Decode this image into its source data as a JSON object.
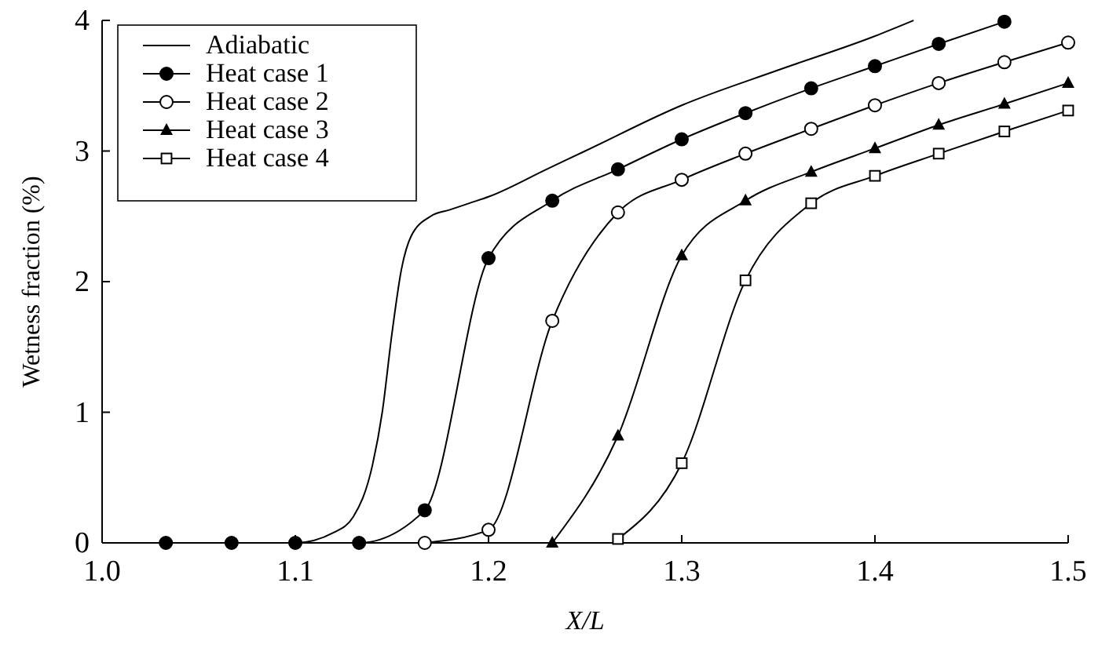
{
  "chart_data": {
    "type": "line",
    "xlabel": "X/L",
    "ylabel": "Wetness fraction (%)",
    "xlim": [
      1.0,
      1.5
    ],
    "ylim": [
      0,
      4
    ],
    "xticks": [
      {
        "value": 1.0,
        "label": "1.0"
      },
      1.1,
      1.2,
      1.3,
      1.4,
      1.5
    ],
    "yticks": [
      0,
      1,
      2,
      3,
      4
    ],
    "grid": false,
    "legend": "top left",
    "series": [
      {
        "name": "Adiabatic",
        "color": "#000000",
        "marker": "none",
        "x": [
          1.03,
          1.1,
          1.12,
          1.13,
          1.14,
          1.145,
          1.15,
          1.155,
          1.16,
          1.17,
          1.18,
          1.19,
          1.2,
          1.23,
          1.25,
          1.3,
          1.35,
          1.4,
          1.42
        ],
        "values": [
          0,
          0,
          0.08,
          0.2,
          0.6,
          1.0,
          1.6,
          2.1,
          2.35,
          2.5,
          2.55,
          2.6,
          2.65,
          2.86,
          3.0,
          3.35,
          3.62,
          3.88,
          4.0
        ]
      },
      {
        "name": "Heat case 1",
        "color": "#000000",
        "marker": "circle",
        "x": [
          1.033,
          1.067,
          1.1,
          1.133,
          1.167,
          1.2,
          1.233,
          1.267,
          1.3,
          1.333,
          1.367,
          1.4,
          1.433,
          1.467
        ],
        "values": [
          0,
          0,
          0,
          0,
          0.25,
          2.18,
          2.62,
          2.86,
          3.09,
          3.29,
          3.48,
          3.65,
          3.82,
          3.99
        ]
      },
      {
        "name": "Heat case 2",
        "color": "#000000",
        "marker": "circle",
        "colors": [
          "#ffffff",
          "#ffffff",
          "#ffffff",
          "#ffffff",
          "#ffffff",
          "#ffffff",
          "#ffffff",
          "#ffffff",
          "#ffffff",
          "#ffffff",
          "#ffffff"
        ],
        "x": [
          1.167,
          1.2,
          1.233,
          1.267,
          1.3,
          1.333,
          1.367,
          1.4,
          1.433,
          1.467,
          1.5
        ],
        "values": [
          0,
          0.1,
          1.7,
          2.53,
          2.78,
          2.98,
          3.17,
          3.35,
          3.52,
          3.68,
          3.83
        ]
      },
      {
        "name": "Heat case 3",
        "color": "#000000",
        "marker": "triangle",
        "x": [
          1.233,
          1.267,
          1.3,
          1.333,
          1.367,
          1.4,
          1.433,
          1.467,
          1.5
        ],
        "values": [
          0,
          0.82,
          2.2,
          2.62,
          2.84,
          3.02,
          3.2,
          3.36,
          3.52
        ]
      },
      {
        "name": "Heat case 4",
        "color": "#000000",
        "marker": "square",
        "colors": [
          "#ffffff",
          "#ffffff",
          "#ffffff",
          "#ffffff",
          "#ffffff",
          "#ffffff",
          "#ffffff",
          "#ffffff"
        ],
        "x": [
          1.267,
          1.3,
          1.333,
          1.367,
          1.4,
          1.433,
          1.467,
          1.5
        ],
        "values": [
          0.03,
          0.61,
          2.01,
          2.6,
          2.81,
          2.98,
          3.15,
          3.31
        ]
      }
    ]
  }
}
